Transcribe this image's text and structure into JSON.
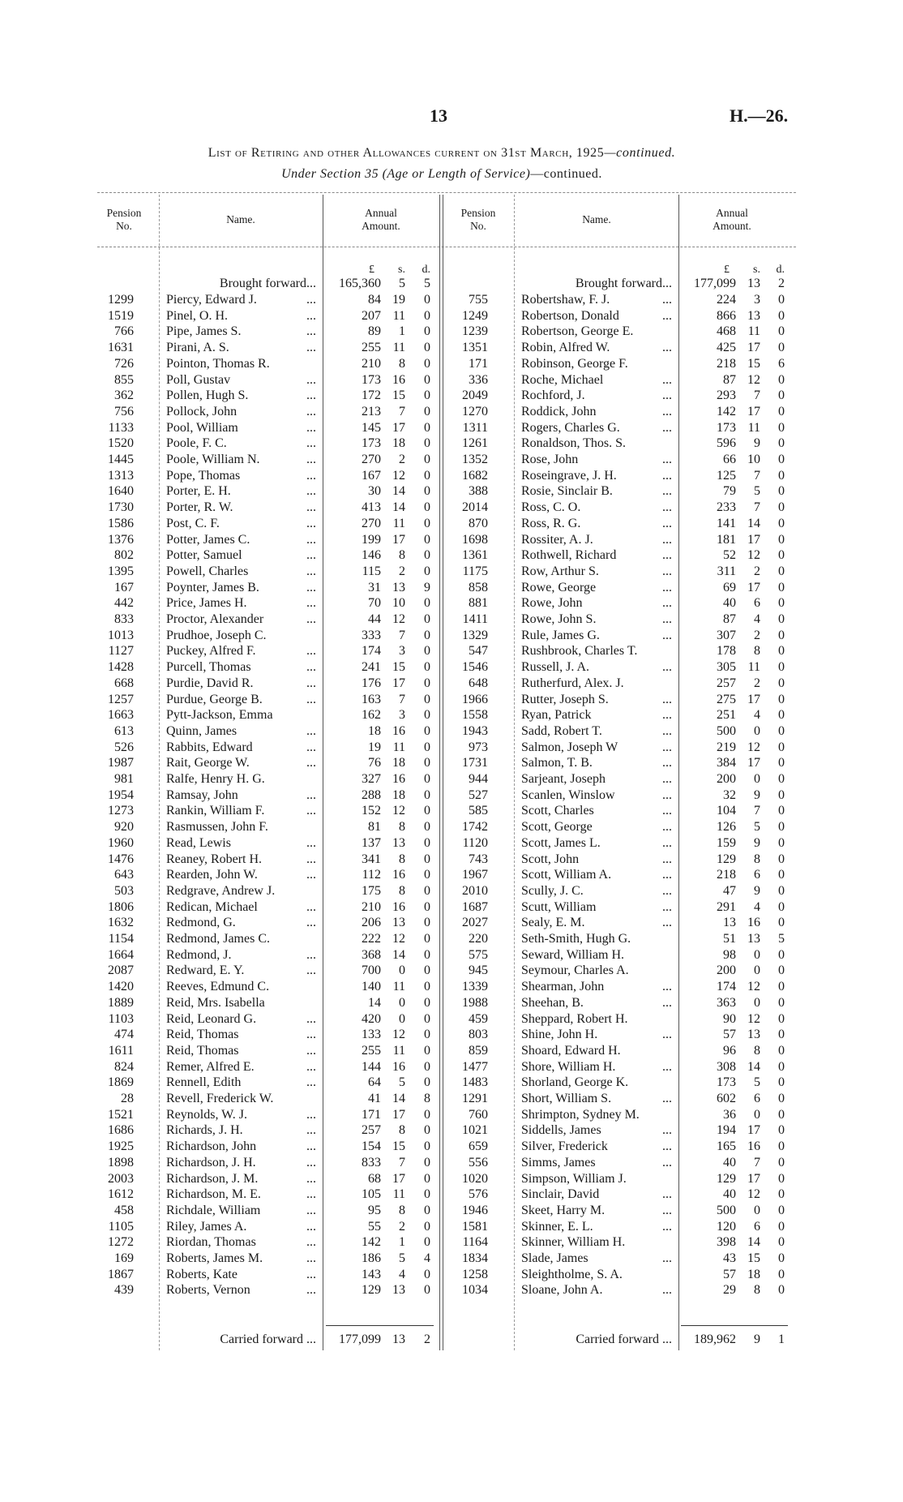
{
  "page_number": "13",
  "doc_ref": "H.—26.",
  "title": {
    "main": "List of Retiring and other Allowances current on 31st March, 1925",
    "continued": "—continued."
  },
  "subtitle": {
    "italic": "Under Section 35 (Age or Length of Service)",
    "rest": "—continued."
  },
  "headers": {
    "pension_no_1": "Pension",
    "pension_no_2": "No.",
    "name": "Name.",
    "amount_1": "Annual",
    "amount_2": "Amount.",
    "pounds": "£",
    "shillings": "s.",
    "pence": "d."
  },
  "left": {
    "brought_forward": {
      "label": "Brought forward...",
      "l": "165,360",
      "s": "5",
      "d": "5"
    },
    "carried_forward": {
      "label": "Carried forward ...",
      "l": "177,099",
      "s": "13",
      "d": "2"
    },
    "rows": [
      [
        "1299",
        "Piercy, Edward J.",
        "...",
        "84",
        "19",
        "0"
      ],
      [
        "1519",
        "Pinel, O. H.",
        "...",
        "207",
        "11",
        "0"
      ],
      [
        "766",
        "Pipe, James S.",
        "...",
        "89",
        "1",
        "0"
      ],
      [
        "1631",
        "Pirani, A. S.",
        "...",
        "255",
        "11",
        "0"
      ],
      [
        "726",
        "Pointon, Thomas R.",
        "",
        "210",
        "8",
        "0"
      ],
      [
        "855",
        "Poll, Gustav",
        "...",
        "173",
        "16",
        "0"
      ],
      [
        "362",
        "Pollen, Hugh S.",
        "...",
        "172",
        "15",
        "0"
      ],
      [
        "756",
        "Pollock, John",
        "...",
        "213",
        "7",
        "0"
      ],
      [
        "1133",
        "Pool, William",
        "...",
        "145",
        "17",
        "0"
      ],
      [
        "1520",
        "Poole, F. C.",
        "...",
        "173",
        "18",
        "0"
      ],
      [
        "1445",
        "Poole, William N.",
        "...",
        "270",
        "2",
        "0"
      ],
      [
        "1313",
        "Pope, Thomas",
        "...",
        "167",
        "12",
        "0"
      ],
      [
        "1640",
        "Porter, E. H.",
        "...",
        "30",
        "14",
        "0"
      ],
      [
        "1730",
        "Porter, R. W.",
        "...",
        "413",
        "14",
        "0"
      ],
      [
        "1586",
        "Post, C. F.",
        "...",
        "270",
        "11",
        "0"
      ],
      [
        "1376",
        "Potter, James C.",
        "...",
        "199",
        "17",
        "0"
      ],
      [
        "802",
        "Potter, Samuel",
        "...",
        "146",
        "8",
        "0"
      ],
      [
        "1395",
        "Powell, Charles",
        "...",
        "115",
        "2",
        "0"
      ],
      [
        "167",
        "Poynter, James B.",
        "...",
        "31",
        "13",
        "9"
      ],
      [
        "442",
        "Price, James H.",
        "...",
        "70",
        "10",
        "0"
      ],
      [
        "833",
        "Proctor, Alexander",
        "...",
        "44",
        "12",
        "0"
      ],
      [
        "1013",
        "Prudhoe, Joseph C.",
        "",
        "333",
        "7",
        "0"
      ],
      [
        "1127",
        "Puckey, Alfred F.",
        "...",
        "174",
        "3",
        "0"
      ],
      [
        "1428",
        "Purcell, Thomas",
        "...",
        "241",
        "15",
        "0"
      ],
      [
        "668",
        "Purdie, David R.",
        "...",
        "176",
        "17",
        "0"
      ],
      [
        "1257",
        "Purdue, George B.",
        "...",
        "163",
        "7",
        "0"
      ],
      [
        "1663",
        "Pytt-Jackson, Emma",
        "",
        "162",
        "3",
        "0"
      ],
      [
        "613",
        "Quinn, James",
        "...",
        "18",
        "16",
        "0"
      ],
      [
        "526",
        "Rabbits, Edward",
        "...",
        "19",
        "11",
        "0"
      ],
      [
        "1987",
        "Rait, George W.",
        "...",
        "76",
        "18",
        "0"
      ],
      [
        "981",
        "Ralfe, Henry H. G.",
        "",
        "327",
        "16",
        "0"
      ],
      [
        "1954",
        "Ramsay, John",
        "...",
        "288",
        "18",
        "0"
      ],
      [
        "1273",
        "Rankin, William F.",
        "...",
        "152",
        "12",
        "0"
      ],
      [
        "920",
        "Rasmussen, John F.",
        "",
        "81",
        "8",
        "0"
      ],
      [
        "1960",
        "Read, Lewis",
        "...",
        "137",
        "13",
        "0"
      ],
      [
        "1476",
        "Reaney, Robert H.",
        "...",
        "341",
        "8",
        "0"
      ],
      [
        "643",
        "Rearden, John W.",
        "...",
        "112",
        "16",
        "0"
      ],
      [
        "503",
        "Redgrave, Andrew J.",
        "",
        "175",
        "8",
        "0"
      ],
      [
        "1806",
        "Redican, Michael",
        "...",
        "210",
        "16",
        "0"
      ],
      [
        "1632",
        "Redmond, G.",
        "...",
        "206",
        "13",
        "0"
      ],
      [
        "1154",
        "Redmond, James C.",
        "",
        "222",
        "12",
        "0"
      ],
      [
        "1664",
        "Redmond, J.",
        "...",
        "368",
        "14",
        "0"
      ],
      [
        "2087",
        "Redward, E. Y.",
        "...",
        "700",
        "0",
        "0"
      ],
      [
        "1420",
        "Reeves, Edmund C.",
        "",
        "140",
        "11",
        "0"
      ],
      [
        "1889",
        "Reid, Mrs. Isabella",
        "",
        "14",
        "0",
        "0"
      ],
      [
        "1103",
        "Reid, Leonard G.",
        "...",
        "420",
        "0",
        "0"
      ],
      [
        "474",
        "Reid, Thomas",
        "...",
        "133",
        "12",
        "0"
      ],
      [
        "1611",
        "Reid, Thomas",
        "...",
        "255",
        "11",
        "0"
      ],
      [
        "824",
        "Remer, Alfred E.",
        "...",
        "144",
        "16",
        "0"
      ],
      [
        "1869",
        "Rennell, Edith",
        "...",
        "64",
        "5",
        "0"
      ],
      [
        "28",
        "Revell, Frederick W.",
        "",
        "41",
        "14",
        "8"
      ],
      [
        "1521",
        "Reynolds, W. J.",
        "...",
        "171",
        "17",
        "0"
      ],
      [
        "1686",
        "Richards, J. H.",
        "...",
        "257",
        "8",
        "0"
      ],
      [
        "1925",
        "Richardson, John",
        "...",
        "154",
        "15",
        "0"
      ],
      [
        "1898",
        "Richardson, J. H.",
        "...",
        "833",
        "7",
        "0"
      ],
      [
        "2003",
        "Richardson, J. M.",
        "...",
        "68",
        "17",
        "0"
      ],
      [
        "1612",
        "Richardson, M. E.",
        "...",
        "105",
        "11",
        "0"
      ],
      [
        "458",
        "Richdale, William",
        "...",
        "95",
        "8",
        "0"
      ],
      [
        "1105",
        "Riley, James A.",
        "...",
        "55",
        "2",
        "0"
      ],
      [
        "1272",
        "Riordan, Thomas",
        "...",
        "142",
        "1",
        "0"
      ],
      [
        "169",
        "Roberts, James M.",
        "...",
        "186",
        "5",
        "4"
      ],
      [
        "1867",
        "Roberts, Kate",
        "...",
        "143",
        "4",
        "0"
      ],
      [
        "439",
        "Roberts, Vernon",
        "...",
        "129",
        "13",
        "0"
      ]
    ]
  },
  "right": {
    "brought_forward": {
      "label": "Brought forward...",
      "l": "177,099",
      "s": "13",
      "d": "2"
    },
    "carried_forward": {
      "label": "Carried forward ...",
      "l": "189,962",
      "s": "9",
      "d": "1"
    },
    "rows": [
      [
        "755",
        "Robertshaw, F. J.",
        "...",
        "224",
        "3",
        "0"
      ],
      [
        "1249",
        "Robertson, Donald",
        "...",
        "866",
        "13",
        "0"
      ],
      [
        "1239",
        "Robertson, George E.",
        "",
        "468",
        "11",
        "0"
      ],
      [
        "1351",
        "Robin, Alfred W.",
        "...",
        "425",
        "17",
        "0"
      ],
      [
        "171",
        "Robinson, George F.",
        "",
        "218",
        "15",
        "6"
      ],
      [
        "336",
        "Roche, Michael",
        "...",
        "87",
        "12",
        "0"
      ],
      [
        "2049",
        "Rochford, J.",
        "...",
        "293",
        "7",
        "0"
      ],
      [
        "1270",
        "Roddick, John",
        "...",
        "142",
        "17",
        "0"
      ],
      [
        "1311",
        "Rogers, Charles G.",
        "...",
        "173",
        "11",
        "0"
      ],
      [
        "1261",
        "Ronaldson, Thos. S.",
        "",
        "596",
        "9",
        "0"
      ],
      [
        "1352",
        "Rose, John",
        "...",
        "66",
        "10",
        "0"
      ],
      [
        "1682",
        "Roseingrave, J. H.",
        "...",
        "125",
        "7",
        "0"
      ],
      [
        "388",
        "Rosie, Sinclair B.",
        "...",
        "79",
        "5",
        "0"
      ],
      [
        "2014",
        "Ross, C. O.",
        "...",
        "233",
        "7",
        "0"
      ],
      [
        "870",
        "Ross, R. G.",
        "...",
        "141",
        "14",
        "0"
      ],
      [
        "1698",
        "Rossiter, A. J.",
        "...",
        "181",
        "17",
        "0"
      ],
      [
        "1361",
        "Rothwell, Richard",
        "...",
        "52",
        "12",
        "0"
      ],
      [
        "1175",
        "Row, Arthur S.",
        "...",
        "311",
        "2",
        "0"
      ],
      [
        "858",
        "Rowe, George",
        "...",
        "69",
        "17",
        "0"
      ],
      [
        "881",
        "Rowe, John",
        "...",
        "40",
        "6",
        "0"
      ],
      [
        "1411",
        "Rowe, John S.",
        "...",
        "87",
        "4",
        "0"
      ],
      [
        "1329",
        "Rule, James G.",
        "...",
        "307",
        "2",
        "0"
      ],
      [
        "547",
        "Rushbrook, Charles T.",
        "",
        "178",
        "8",
        "0"
      ],
      [
        "1546",
        "Russell, J. A.",
        "...",
        "305",
        "11",
        "0"
      ],
      [
        "648",
        "Rutherfurd, Alex. J.",
        "",
        "257",
        "2",
        "0"
      ],
      [
        "1966",
        "Rutter, Joseph S.",
        "...",
        "275",
        "17",
        "0"
      ],
      [
        "1558",
        "Ryan, Patrick",
        "...",
        "251",
        "4",
        "0"
      ],
      [
        "1943",
        "Sadd, Robert T.",
        "...",
        "500",
        "0",
        "0"
      ],
      [
        "973",
        "Salmon, Joseph W",
        "...",
        "219",
        "12",
        "0"
      ],
      [
        "1731",
        "Salmon, T. B.",
        "...",
        "384",
        "17",
        "0"
      ],
      [
        "944",
        "Sarjeant, Joseph",
        "...",
        "200",
        "0",
        "0"
      ],
      [
        "527",
        "Scanlen, Winslow",
        "...",
        "32",
        "9",
        "0"
      ],
      [
        "585",
        "Scott, Charles",
        "...",
        "104",
        "7",
        "0"
      ],
      [
        "1742",
        "Scott, George",
        "...",
        "126",
        "5",
        "0"
      ],
      [
        "1120",
        "Scott, James L.",
        "...",
        "159",
        "9",
        "0"
      ],
      [
        "743",
        "Scott, John",
        "...",
        "129",
        "8",
        "0"
      ],
      [
        "1967",
        "Scott, William A.",
        "...",
        "218",
        "6",
        "0"
      ],
      [
        "2010",
        "Scully, J. C.",
        "...",
        "47",
        "9",
        "0"
      ],
      [
        "1687",
        "Scutt, William",
        "...",
        "291",
        "4",
        "0"
      ],
      [
        "2027",
        "Sealy, E. M.",
        "...",
        "13",
        "16",
        "0"
      ],
      [
        "220",
        "Seth-Smith, Hugh G.",
        "",
        "51",
        "13",
        "5"
      ],
      [
        "575",
        "Seward, William H.",
        "",
        "98",
        "0",
        "0"
      ],
      [
        "945",
        "Seymour, Charles A.",
        "",
        "200",
        "0",
        "0"
      ],
      [
        "1339",
        "Shearman, John",
        "...",
        "174",
        "12",
        "0"
      ],
      [
        "1988",
        "Sheehan, B.",
        "...",
        "363",
        "0",
        "0"
      ],
      [
        "459",
        "Sheppard, Robert H.",
        "",
        "90",
        "12",
        "0"
      ],
      [
        "803",
        "Shine, John H.",
        "...",
        "57",
        "13",
        "0"
      ],
      [
        "859",
        "Shoard, Edward H.",
        "",
        "96",
        "8",
        "0"
      ],
      [
        "1477",
        "Shore, William H.",
        "...",
        "308",
        "14",
        "0"
      ],
      [
        "1483",
        "Shorland, George K.",
        "",
        "173",
        "5",
        "0"
      ],
      [
        "1291",
        "Short, William S.",
        "...",
        "602",
        "6",
        "0"
      ],
      [
        "760",
        "Shrimpton, Sydney M.",
        "",
        "36",
        "0",
        "0"
      ],
      [
        "1021",
        "Siddells, James",
        "...",
        "194",
        "17",
        "0"
      ],
      [
        "659",
        "Silver, Frederick",
        "...",
        "165",
        "16",
        "0"
      ],
      [
        "556",
        "Simms, James",
        "...",
        "40",
        "7",
        "0"
      ],
      [
        "1020",
        "Simpson, William J.",
        "",
        "129",
        "17",
        "0"
      ],
      [
        "576",
        "Sinclair, David",
        "...",
        "40",
        "12",
        "0"
      ],
      [
        "1946",
        "Skeet, Harry M.",
        "...",
        "500",
        "0",
        "0"
      ],
      [
        "1581",
        "Skinner, E. L.",
        "...",
        "120",
        "6",
        "0"
      ],
      [
        "1164",
        "Skinner, William H.",
        "",
        "398",
        "14",
        "0"
      ],
      [
        "1834",
        "Slade, James",
        "...",
        "43",
        "15",
        "0"
      ],
      [
        "1258",
        "Sleightholme, S. A.",
        "",
        "57",
        "18",
        "0"
      ],
      [
        "1034",
        "Sloane, John A.",
        "...",
        "29",
        "8",
        "0"
      ]
    ]
  }
}
